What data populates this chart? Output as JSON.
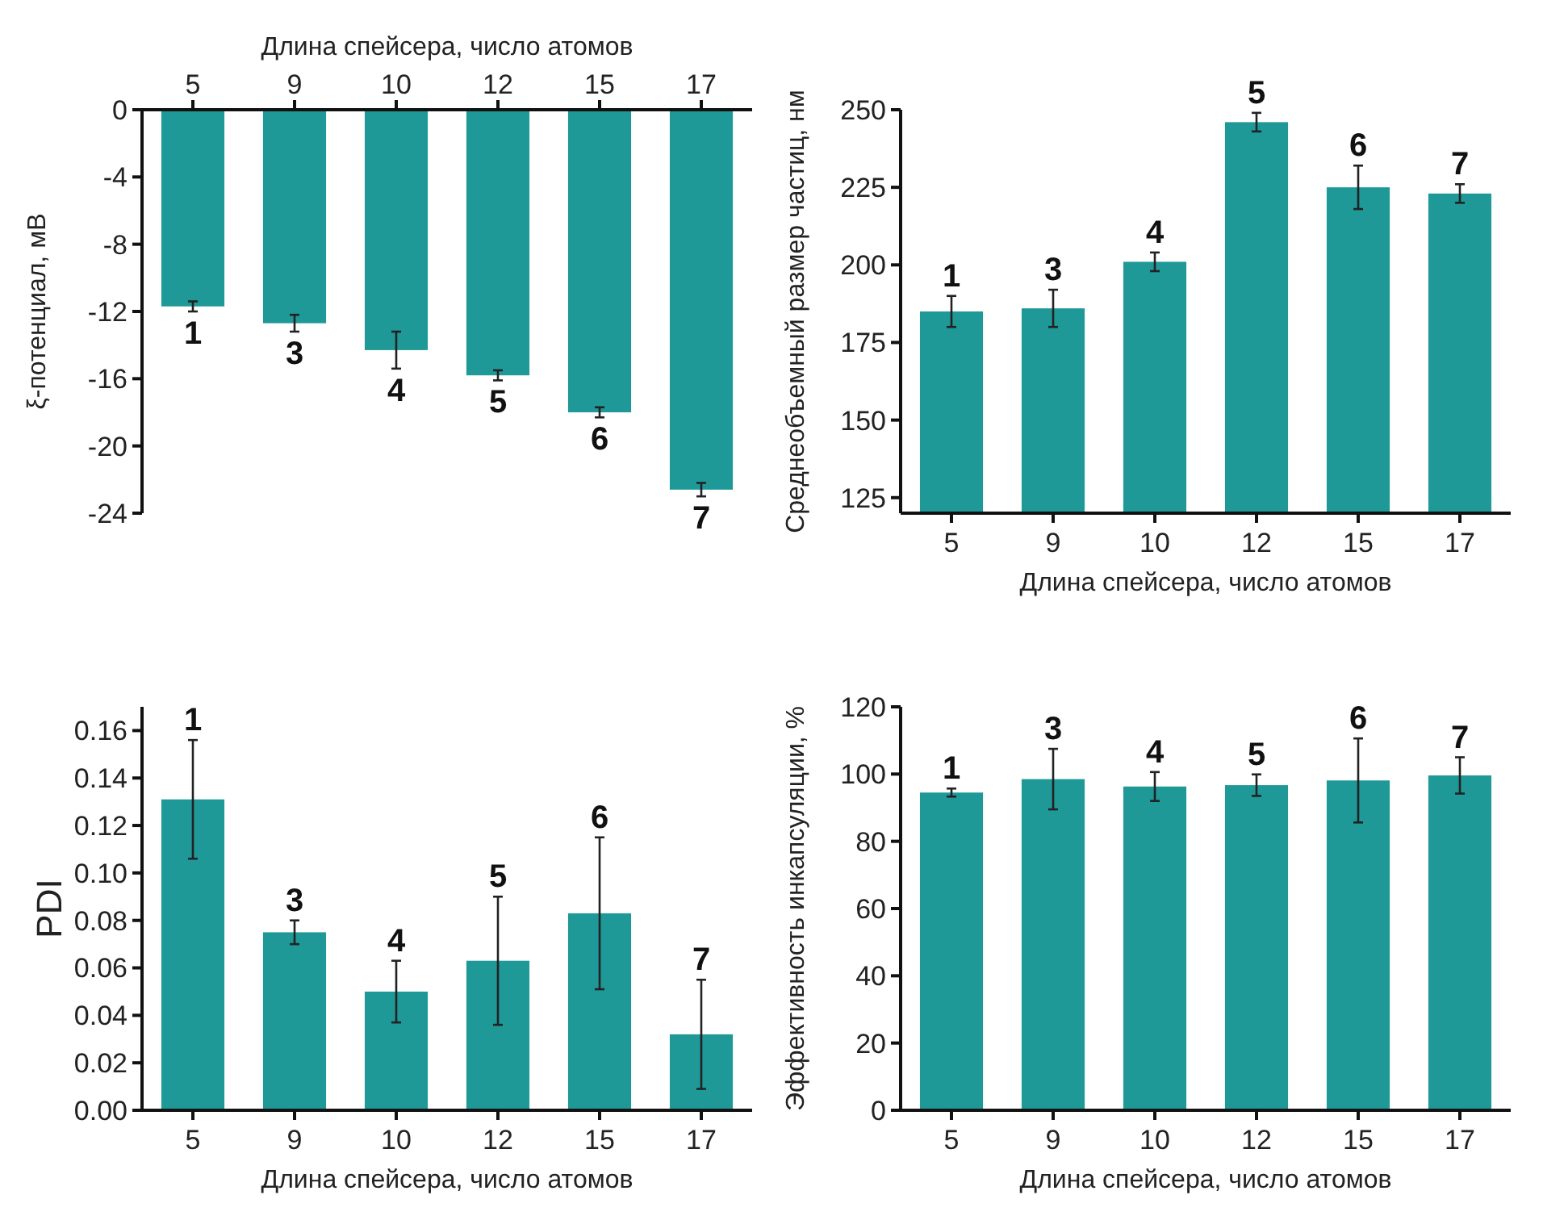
{
  "chart_data": [
    {
      "type": "bar",
      "xlabel": "Длина спейсера, число атомов",
      "ylabel": "ξ-потенциал, мВ",
      "categories": [
        "5",
        "9",
        "10",
        "12",
        "15",
        "17"
      ],
      "values": [
        -11.7,
        -12.7,
        -14.3,
        -15.8,
        -18.0,
        -22.6
      ],
      "errors": [
        0.3,
        0.5,
        1.1,
        0.3,
        0.3,
        0.4
      ],
      "color": "#1f9898",
      "ylim": [
        -24,
        0
      ],
      "yticks": [
        0,
        -4,
        -8,
        -12,
        -16,
        -20,
        -24
      ],
      "annotations": [
        {
          "text": "1",
          "x": "5",
          "y": -11.7
        },
        {
          "text": "3",
          "x": "9",
          "y": -12.7
        },
        {
          "text": "4",
          "x": "10",
          "y": -14.3
        },
        {
          "text": "5",
          "x": "12",
          "y": -15.8
        },
        {
          "text": "6",
          "x": "15",
          "y": -18.0
        },
        {
          "text": "7",
          "x": "17",
          "y": -22.6
        }
      ]
    },
    {
      "type": "bar",
      "xlabel": "Длина спейсера, число атомов",
      "ylabel": "Среднеобъемный размер частиц, нм",
      "categories": [
        "5",
        "9",
        "10",
        "12",
        "15",
        "17"
      ],
      "values": [
        185,
        186,
        201,
        246,
        225,
        223
      ],
      "errors": [
        5,
        6,
        3,
        3,
        7,
        3
      ],
      "color": "#1f9898",
      "ylim": [
        120,
        250
      ],
      "yticks": [
        125,
        150,
        175,
        200,
        225,
        250
      ],
      "annotations": [
        {
          "text": "1",
          "x": "5",
          "y": 185
        },
        {
          "text": "3",
          "x": "9",
          "y": 186
        },
        {
          "text": "4",
          "x": "10",
          "y": 201
        },
        {
          "text": "5",
          "x": "12",
          "y": 246
        },
        {
          "text": "6",
          "x": "15",
          "y": 225
        },
        {
          "text": "7",
          "x": "17",
          "y": 223
        }
      ]
    },
    {
      "type": "bar",
      "xlabel": "Длина спейсера, число атомов",
      "ylabel": "PDI",
      "categories": [
        "5",
        "9",
        "10",
        "12",
        "15",
        "17"
      ],
      "values": [
        0.131,
        0.075,
        0.05,
        0.063,
        0.083,
        0.032
      ],
      "errors": [
        0.025,
        0.005,
        0.013,
        0.027,
        0.032,
        0.023
      ],
      "color": "#1f9898",
      "ylim": [
        0,
        0.17
      ],
      "yticks": [
        {
          "value": 0,
          "label": "0.00"
        },
        0.02,
        0.04,
        0.06,
        0.08,
        {
          "value": 0.1,
          "label": "0.10"
        },
        0.12,
        0.14,
        0.16
      ],
      "annotations": [
        {
          "text": "1",
          "x": "5",
          "y": 0.131
        },
        {
          "text": "3",
          "x": "9",
          "y": 0.075
        },
        {
          "text": "4",
          "x": "10",
          "y": 0.05
        },
        {
          "text": "5",
          "x": "12",
          "y": 0.063
        },
        {
          "text": "6",
          "x": "15",
          "y": 0.083
        },
        {
          "text": "7",
          "x": "17",
          "y": 0.032
        }
      ]
    },
    {
      "type": "bar",
      "xlabel": "Длина спейсера, число атомов",
      "ylabel": "Эффективность инкапсуляции, %",
      "categories": [
        "5",
        "9",
        "10",
        "12",
        "15",
        "17"
      ],
      "values": [
        94.5,
        98.5,
        96.3,
        96.7,
        98.1,
        99.6
      ],
      "errors": [
        1.2,
        9,
        4.3,
        3.2,
        12.5,
        5.4
      ],
      "color": "#1f9898",
      "ylim": [
        0,
        120
      ],
      "yticks": [
        0,
        20,
        40,
        60,
        80,
        100,
        120
      ],
      "annotations": [
        {
          "text": "1",
          "x": "5",
          "y": 94.5
        },
        {
          "text": "3",
          "x": "9",
          "y": 98.5
        },
        {
          "text": "4",
          "x": "10",
          "y": 96.3
        },
        {
          "text": "5",
          "x": "12",
          "y": 96.7
        },
        {
          "text": "6",
          "x": "15",
          "y": 98.1
        },
        {
          "text": "7",
          "x": "17",
          "y": 99.6
        }
      ]
    }
  ]
}
